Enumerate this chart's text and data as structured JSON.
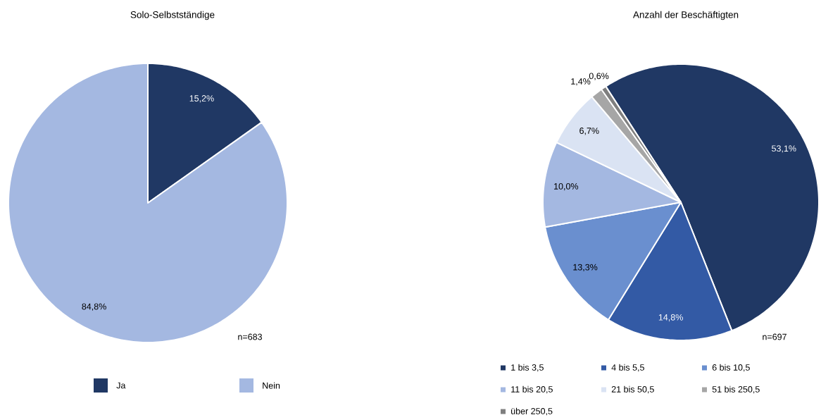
{
  "chart_data": [
    {
      "type": "pie",
      "title": "Solo-Selbstständige",
      "categories": [
        "Ja",
        "Nein"
      ],
      "values": [
        15.2,
        84.8
      ],
      "colors": [
        "#203864",
        "#a4b8e1"
      ],
      "value_labels": [
        "15,2%",
        "84,8%"
      ],
      "annotations": [
        "n=683"
      ],
      "legend": "bottom"
    },
    {
      "type": "pie",
      "title": "Anzahl der Beschäftigten",
      "categories": [
        "1 bis 3,5",
        "4 bis 5,5",
        "6 bis 10,5",
        "11 bis 20,5",
        "21 bis 50,5",
        "51 bis 250,5",
        "über 250,5"
      ],
      "values": [
        53.1,
        14.8,
        13.3,
        10.0,
        6.7,
        1.4,
        0.6
      ],
      "colors": [
        "#203864",
        "#335aa5",
        "#6a8fcf",
        "#a4b8e1",
        "#dae3f3",
        "#a6a6a6",
        "#7f7f7f"
      ],
      "value_labels": [
        "53,1%",
        "14,8%",
        "13,3%",
        "10,0%",
        "6,7%",
        "1,4%",
        "0,6%"
      ],
      "annotations": [
        "n=697"
      ],
      "legend": "bottom"
    }
  ]
}
